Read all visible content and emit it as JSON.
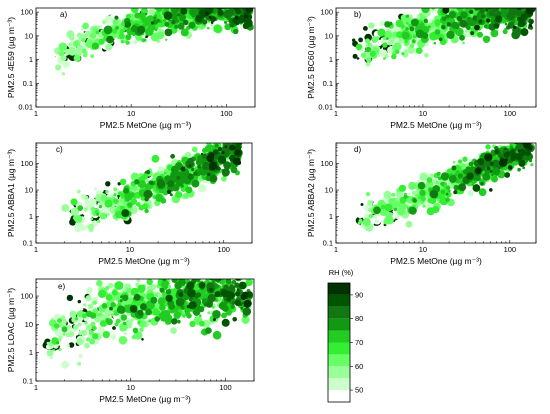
{
  "chart_data": [
    {
      "type": "scatter",
      "panel_label": "a)",
      "xlabel": "PM2.5 MetOne (µg m⁻³)",
      "ylabel": "PM2.5 4E59 (µg m⁻³)",
      "x_scale": "log",
      "y_scale": "log",
      "xlim": [
        1,
        200
      ],
      "ylim": [
        0.01,
        150
      ],
      "x_ticks": [
        1,
        10,
        100
      ],
      "x_tick_labels": [
        "1",
        "10",
        "100"
      ],
      "y_ticks": [
        0.01,
        0.1,
        1,
        10,
        100
      ],
      "y_tick_labels": [
        "0.01",
        "0.1",
        "1",
        "10",
        "100"
      ],
      "trend": {
        "x": [
          1.5,
          3,
          8,
          20,
          60,
          180
        ],
        "y": [
          1.5,
          5,
          20,
          55,
          100,
          130
        ],
        "spread": 0.35
      },
      "point_count": 700
    },
    {
      "type": "scatter",
      "panel_label": "b)",
      "xlabel": "PM2.5 MetOne (µg m⁻³)",
      "ylabel": "PM2.5 BC60 (µg m⁻³)",
      "x_scale": "log",
      "y_scale": "log",
      "xlim": [
        1,
        200
      ],
      "ylim": [
        0.01,
        150
      ],
      "x_ticks": [
        1,
        10,
        100
      ],
      "x_tick_labels": [
        "1",
        "10",
        "100"
      ],
      "y_ticks": [
        0.01,
        0.1,
        1,
        10,
        100
      ],
      "y_tick_labels": [
        "0.01",
        "0.1",
        "1",
        "10",
        "100"
      ],
      "trend": {
        "x": [
          1.5,
          3,
          8,
          20,
          60,
          180
        ],
        "y": [
          1.2,
          4,
          15,
          45,
          100,
          130
        ],
        "spread": 0.4
      },
      "point_count": 700
    },
    {
      "type": "scatter",
      "panel_label": "c)",
      "xlabel": "PM2.5 MetOne (µg m⁻³)",
      "ylabel": "PM2.5 ABBA1 (µg m⁻³)",
      "x_scale": "log",
      "y_scale": "log",
      "xlim": [
        1,
        200
      ],
      "ylim": [
        0.1,
        600
      ],
      "x_ticks": [
        1,
        10,
        100
      ],
      "x_tick_labels": [
        "1",
        "10",
        "100"
      ],
      "y_ticks": [
        0.1,
        1,
        10,
        100
      ],
      "y_tick_labels": [
        "0.1",
        "1",
        "10",
        "100"
      ],
      "trend": {
        "x": [
          2,
          5,
          10,
          30,
          80,
          150
        ],
        "y": [
          1,
          2,
          5,
          25,
          120,
          400
        ],
        "spread": 0.35
      },
      "point_count": 700
    },
    {
      "type": "scatter",
      "panel_label": "d)",
      "xlabel": "PM2.5 MetOne (µg m⁻³)",
      "ylabel": "PM2.5 ABBA2 (µg m⁻³)",
      "x_scale": "log",
      "y_scale": "log",
      "xlim": [
        1,
        200
      ],
      "ylim": [
        0.1,
        600
      ],
      "x_ticks": [
        1,
        10,
        100
      ],
      "x_tick_labels": [
        "1",
        "10",
        "100"
      ],
      "y_ticks": [
        0.1,
        1,
        10,
        100
      ],
      "y_tick_labels": [
        "0.1",
        "1",
        "10",
        "100"
      ],
      "trend": {
        "x": [
          1.8,
          4,
          10,
          30,
          80,
          180
        ],
        "y": [
          1,
          2,
          6,
          35,
          150,
          420
        ],
        "spread": 0.3
      },
      "point_count": 700
    },
    {
      "type": "scatter",
      "panel_label": "e)",
      "xlabel": "PM2.5 MetOne (µg m⁻³)",
      "ylabel": "PM2.5 LOAC (µg m⁻³)",
      "x_scale": "log",
      "y_scale": "log",
      "xlim": [
        1,
        200
      ],
      "ylim": [
        0.1,
        400
      ],
      "x_ticks": [
        1,
        10,
        100
      ],
      "x_tick_labels": [
        "1",
        "10",
        "100"
      ],
      "y_ticks": [
        0.1,
        1,
        10,
        100
      ],
      "y_tick_labels": [
        "0.1",
        "1",
        "10",
        "100"
      ],
      "trend": {
        "x": [
          1.2,
          3,
          8,
          20,
          60,
          180
        ],
        "y": [
          3,
          10,
          40,
          80,
          100,
          100
        ],
        "spread": 0.45
      },
      "point_count": 800
    }
  ],
  "colorbar": {
    "title": "RH (%)",
    "tick_labels": [
      "50",
      "60",
      "70",
      "80",
      "90"
    ],
    "tick_values": [
      50,
      60,
      70,
      80,
      90
    ],
    "range": [
      45,
      95
    ],
    "bands": [
      {
        "from": 45,
        "to": 50,
        "color": "#ffffff"
      },
      {
        "from": 50,
        "to": 55,
        "color": "#ccffcc"
      },
      {
        "from": 55,
        "to": 60,
        "color": "#99ff99"
      },
      {
        "from": 60,
        "to": 65,
        "color": "#66ff66"
      },
      {
        "from": 65,
        "to": 70,
        "color": "#33ee33"
      },
      {
        "from": 70,
        "to": 75,
        "color": "#22cc22"
      },
      {
        "from": 75,
        "to": 80,
        "color": "#119911"
      },
      {
        "from": 80,
        "to": 85,
        "color": "#117711"
      },
      {
        "from": 85,
        "to": 90,
        "color": "#005500"
      },
      {
        "from": 90,
        "to": 95,
        "color": "#003300"
      }
    ]
  }
}
